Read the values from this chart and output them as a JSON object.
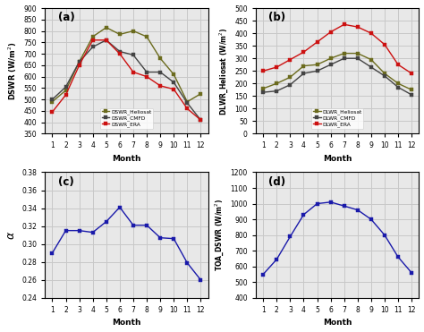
{
  "months": [
    1,
    2,
    3,
    4,
    5,
    6,
    7,
    8,
    9,
    10,
    11,
    12
  ],
  "dswr_heliosat": [
    490,
    540,
    665,
    775,
    815,
    785,
    800,
    775,
    680,
    610,
    490,
    525
  ],
  "dswr_cmfd": [
    500,
    555,
    665,
    730,
    760,
    710,
    695,
    620,
    620,
    575,
    485,
    410
  ],
  "dswr_era": [
    445,
    520,
    650,
    760,
    760,
    700,
    620,
    600,
    560,
    545,
    460,
    410
  ],
  "dlwr_heliosat": [
    180,
    200,
    225,
    270,
    275,
    300,
    320,
    320,
    295,
    240,
    200,
    175
  ],
  "dlwr_cmfd": [
    165,
    170,
    195,
    240,
    250,
    275,
    300,
    300,
    265,
    230,
    185,
    155
  ],
  "dlwr_era": [
    250,
    265,
    295,
    325,
    365,
    405,
    435,
    425,
    400,
    355,
    275,
    240
  ],
  "alpha": [
    0.29,
    0.315,
    0.315,
    0.313,
    0.325,
    0.341,
    0.321,
    0.321,
    0.307,
    0.306,
    0.279,
    0.26
  ],
  "toa_dswr": [
    550,
    645,
    790,
    930,
    1000,
    1010,
    985,
    960,
    900,
    800,
    660,
    560
  ],
  "heliosat_color": "#6b6b1e",
  "cmfd_color": "#444444",
  "era_color": "#cc1111",
  "single_color": "#1a1aaa",
  "grid_color": "#c8c8c8",
  "background": "#e8e8e8"
}
